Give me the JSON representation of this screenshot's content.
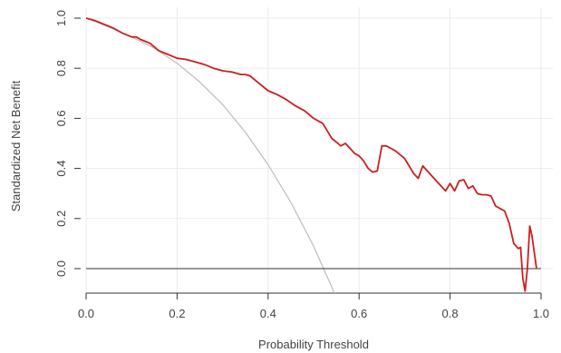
{
  "chart_data": {
    "type": "line",
    "title": "",
    "xlabel": "Probability Threshold",
    "ylabel": "Standardized Net Benefit",
    "xlim": [
      0.0,
      1.0
    ],
    "ylim": [
      -0.1,
      1.0
    ],
    "x_ticks": [
      0.0,
      0.2,
      0.4,
      0.6,
      0.8,
      1.0
    ],
    "x_tick_labels": [
      "0.0",
      "0.2",
      "0.4",
      "0.6",
      "0.8",
      "1.0"
    ],
    "y_ticks": [
      0.0,
      0.2,
      0.4,
      0.6,
      0.8,
      1.0
    ],
    "y_tick_labels": [
      "0.0",
      "0.2",
      "0.4",
      "0.6",
      "0.8",
      "1.0"
    ],
    "grid": true,
    "colors": {
      "model": "#cc1f1f",
      "treat_all": "#bdbdbd",
      "treat_none": "#333333",
      "grid": "#ebebeb",
      "axis": "#333333"
    },
    "series": [
      {
        "key": "model",
        "x": [
          0.0,
          0.02,
          0.04,
          0.06,
          0.08,
          0.1,
          0.11,
          0.12,
          0.14,
          0.15,
          0.16,
          0.18,
          0.2,
          0.22,
          0.24,
          0.26,
          0.28,
          0.3,
          0.32,
          0.34,
          0.35,
          0.36,
          0.38,
          0.4,
          0.42,
          0.44,
          0.46,
          0.48,
          0.5,
          0.51,
          0.52,
          0.53,
          0.54,
          0.55,
          0.56,
          0.57,
          0.58,
          0.59,
          0.6,
          0.61,
          0.62,
          0.63,
          0.64,
          0.65,
          0.66,
          0.67,
          0.68,
          0.69,
          0.7,
          0.71,
          0.72,
          0.73,
          0.74,
          0.75,
          0.76,
          0.77,
          0.78,
          0.79,
          0.8,
          0.81,
          0.82,
          0.83,
          0.84,
          0.85,
          0.86,
          0.87,
          0.88,
          0.89,
          0.9,
          0.91,
          0.92,
          0.93,
          0.935,
          0.94,
          0.945,
          0.95,
          0.955,
          0.96,
          0.965,
          0.97,
          0.975,
          0.98,
          0.99
        ],
        "y": [
          1.0,
          0.99,
          0.975,
          0.96,
          0.94,
          0.925,
          0.925,
          0.915,
          0.9,
          0.885,
          0.87,
          0.855,
          0.84,
          0.835,
          0.825,
          0.815,
          0.8,
          0.79,
          0.785,
          0.775,
          0.775,
          0.77,
          0.74,
          0.71,
          0.695,
          0.675,
          0.65,
          0.63,
          0.6,
          0.59,
          0.58,
          0.55,
          0.52,
          0.505,
          0.49,
          0.5,
          0.48,
          0.46,
          0.45,
          0.43,
          0.4,
          0.385,
          0.39,
          0.49,
          0.49,
          0.48,
          0.47,
          0.455,
          0.44,
          0.41,
          0.38,
          0.36,
          0.41,
          0.39,
          0.37,
          0.35,
          0.33,
          0.31,
          0.34,
          0.31,
          0.35,
          0.355,
          0.32,
          0.33,
          0.3,
          0.295,
          0.295,
          0.29,
          0.25,
          0.24,
          0.23,
          0.18,
          0.14,
          0.1,
          0.09,
          0.08,
          0.085,
          -0.04,
          -0.09,
          0.0,
          0.17,
          0.13,
          0.0
        ]
      },
      {
        "key": "treat_all",
        "x": [
          0.0,
          0.05,
          0.1,
          0.15,
          0.2,
          0.25,
          0.3,
          0.35,
          0.4,
          0.45,
          0.5,
          0.55,
          0.58
        ],
        "y": [
          1.0,
          0.965,
          0.925,
          0.88,
          0.82,
          0.745,
          0.655,
          0.545,
          0.415,
          0.265,
          0.09,
          -0.115,
          -0.255
        ]
      },
      {
        "key": "treat_none",
        "x": [
          0.0,
          1.0
        ],
        "y": [
          0.0,
          0.0
        ]
      }
    ]
  }
}
